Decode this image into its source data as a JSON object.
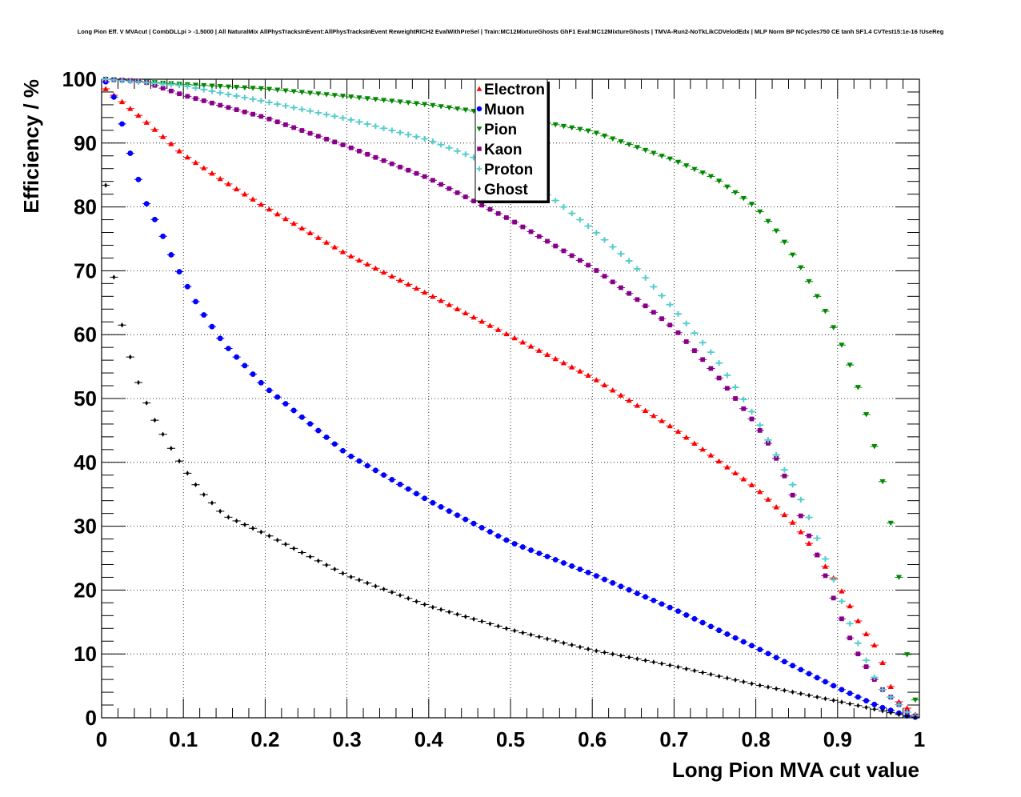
{
  "chart_data": {
    "type": "scatter",
    "title": "Long Pion Eff. V MVAcut | CombDLLpi > -1.5000 | All NaturalMix AllPhysTracksInEvent:AllPhysTracksInEvent ReweightRICH2 EvalWithPreSel | Train:MC12MixtureGhosts GhF1 Eval:MC12MixtureGhosts | TMVA-Run2-NoTkLikCDVelodEdx | MLP Norm BP NCycles750 CE tanh SF1.4 CVTest15:1e-16 !UseReg",
    "xlabel": "Long Pion MVA cut value",
    "ylabel": "Efficiency / %",
    "xlim": [
      0,
      1
    ],
    "ylim": [
      0,
      100
    ],
    "grid": true,
    "legend_position": "top-center",
    "x_ticks": [
      "0",
      "0.1",
      "0.2",
      "0.3",
      "0.4",
      "0.5",
      "0.6",
      "0.7",
      "0.8",
      "0.9",
      "1"
    ],
    "y_ticks": [
      "0",
      "10",
      "20",
      "30",
      "40",
      "50",
      "60",
      "70",
      "80",
      "90",
      "100"
    ],
    "x_tick_values": [
      0,
      0.1,
      0.2,
      0.3,
      0.4,
      0.5,
      0.6,
      0.7,
      0.8,
      0.9,
      1.0
    ],
    "y_tick_values": [
      0,
      10,
      20,
      30,
      40,
      50,
      60,
      70,
      80,
      90,
      100
    ],
    "x_step": 0.01,
    "series": [
      {
        "name": "Electron",
        "color": "#ff0000",
        "marker": "triangle-up",
        "anchors": [
          [
            0.005,
            98.5
          ],
          [
            0.02,
            97
          ],
          [
            0.05,
            93.8
          ],
          [
            0.1,
            88.2
          ],
          [
            0.15,
            84
          ],
          [
            0.2,
            80
          ],
          [
            0.3,
            72.6
          ],
          [
            0.4,
            66.3
          ],
          [
            0.5,
            59.8
          ],
          [
            0.6,
            53.3
          ],
          [
            0.7,
            45.3
          ],
          [
            0.8,
            36
          ],
          [
            0.85,
            30
          ],
          [
            0.9,
            21
          ],
          [
            0.93,
            14
          ],
          [
            0.95,
            10.5
          ],
          [
            0.97,
            3
          ],
          [
            0.995,
            0.5
          ]
        ]
      },
      {
        "name": "Muon",
        "color": "#0000ff",
        "marker": "circle",
        "anchors": [
          [
            0.005,
            99.6
          ],
          [
            0.015,
            97.2
          ],
          [
            0.025,
            93
          ],
          [
            0.035,
            88.4
          ],
          [
            0.045,
            84.3
          ],
          [
            0.055,
            80.5
          ],
          [
            0.07,
            76.8
          ],
          [
            0.08,
            74
          ],
          [
            0.09,
            71
          ],
          [
            0.1,
            68.7
          ],
          [
            0.12,
            64
          ],
          [
            0.15,
            58.5
          ],
          [
            0.2,
            51.8
          ],
          [
            0.3,
            41.3
          ],
          [
            0.4,
            34
          ],
          [
            0.5,
            27.5
          ],
          [
            0.6,
            22.5
          ],
          [
            0.7,
            17
          ],
          [
            0.8,
            11
          ],
          [
            0.9,
            4.7
          ],
          [
            0.95,
            1.8
          ],
          [
            0.99,
            0.1
          ]
        ]
      },
      {
        "name": "Pion",
        "color": "#008800",
        "marker": "triangle-down",
        "anchors": [
          [
            0.005,
            100
          ],
          [
            0.1,
            99.2
          ],
          [
            0.2,
            98.5
          ],
          [
            0.3,
            97.3
          ],
          [
            0.4,
            96
          ],
          [
            0.5,
            94.2
          ],
          [
            0.6,
            91.8
          ],
          [
            0.7,
            87.3
          ],
          [
            0.75,
            84.5
          ],
          [
            0.8,
            80
          ],
          [
            0.83,
            75.5
          ],
          [
            0.86,
            69.5
          ],
          [
            0.89,
            62.5
          ],
          [
            0.91,
            57
          ],
          [
            0.93,
            50
          ],
          [
            0.95,
            40
          ],
          [
            0.96,
            34
          ],
          [
            0.97,
            27
          ],
          [
            0.98,
            17
          ],
          [
            0.99,
            2.8
          ]
        ]
      },
      {
        "name": "Kaon",
        "color": "#880088",
        "marker": "square",
        "anchors": [
          [
            0.005,
            100
          ],
          [
            0.05,
            99.7
          ],
          [
            0.1,
            97.5
          ],
          [
            0.2,
            94
          ],
          [
            0.3,
            89.5
          ],
          [
            0.4,
            84.5
          ],
          [
            0.5,
            78
          ],
          [
            0.6,
            70.5
          ],
          [
            0.65,
            66
          ],
          [
            0.7,
            61
          ],
          [
            0.75,
            54
          ],
          [
            0.8,
            46
          ],
          [
            0.82,
            42
          ],
          [
            0.84,
            36.5
          ],
          [
            0.86,
            30
          ],
          [
            0.88,
            24
          ],
          [
            0.9,
            17
          ],
          [
            0.92,
            11
          ],
          [
            0.95,
            5
          ],
          [
            0.99,
            0.3
          ]
        ]
      },
      {
        "name": "Proton",
        "color": "#55cccc",
        "marker": "plus",
        "anchors": [
          [
            0.005,
            100
          ],
          [
            0.1,
            99
          ],
          [
            0.2,
            96.5
          ],
          [
            0.3,
            93.8
          ],
          [
            0.4,
            90.5
          ],
          [
            0.5,
            85.5
          ],
          [
            0.55,
            81.5
          ],
          [
            0.6,
            76.5
          ],
          [
            0.65,
            71
          ],
          [
            0.7,
            64
          ],
          [
            0.75,
            56.5
          ],
          [
            0.8,
            47
          ],
          [
            0.83,
            40
          ],
          [
            0.86,
            33
          ],
          [
            0.88,
            26.5
          ],
          [
            0.9,
            20
          ],
          [
            0.92,
            13
          ],
          [
            0.95,
            5
          ],
          [
            0.99,
            0.3
          ]
        ]
      },
      {
        "name": "Ghost",
        "color": "#000000",
        "marker": "diamond",
        "anchors": [
          [
            0.005,
            83.4
          ],
          [
            0.015,
            69
          ],
          [
            0.025,
            61.5
          ],
          [
            0.035,
            56.5
          ],
          [
            0.045,
            52.5
          ],
          [
            0.055,
            49.3
          ],
          [
            0.065,
            46.6
          ],
          [
            0.075,
            44.4
          ],
          [
            0.085,
            42.2
          ],
          [
            0.1,
            39.2
          ],
          [
            0.12,
            35.6
          ],
          [
            0.15,
            31.7
          ],
          [
            0.2,
            28.8
          ],
          [
            0.3,
            22.3
          ],
          [
            0.4,
            17.5
          ],
          [
            0.5,
            13.8
          ],
          [
            0.6,
            10.6
          ],
          [
            0.7,
            8.1
          ],
          [
            0.8,
            5.2
          ],
          [
            0.9,
            2.6
          ],
          [
            0.99,
            0.1
          ]
        ]
      }
    ]
  }
}
